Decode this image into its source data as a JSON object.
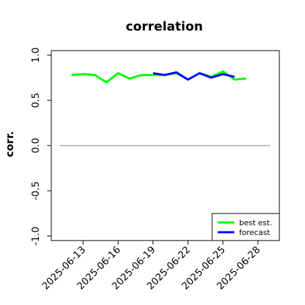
{
  "chart_data": {
    "type": "line",
    "title": "correlation",
    "xlabel": "",
    "ylabel": "corr.",
    "ylim": [
      -1.05,
      1.05
    ],
    "yticks": [
      "-1.0",
      "-0.5",
      "0.0",
      "0.5",
      "1.0"
    ],
    "ytick_values": [
      -1.0,
      -0.5,
      0.0,
      0.5,
      1.0
    ],
    "xticks": [
      "2025-06-13",
      "2025-06-16",
      "2025-06-19",
      "2025-06-22",
      "2025-06-25",
      "2025-06-28"
    ],
    "highlighted_xtick": "2025-06-19",
    "highlight_color": "#228B22",
    "grid": false,
    "legend_position": "lower right",
    "reference_line": {
      "y": 0.0,
      "color": "#808080"
    },
    "series": [
      {
        "name": "best est.",
        "color": "#00ff00",
        "x": [
          "2025-06-12",
          "2025-06-13",
          "2025-06-14",
          "2025-06-15",
          "2025-06-16",
          "2025-06-17",
          "2025-06-18",
          "2025-06-19",
          "2025-06-20",
          "2025-06-21",
          "2025-06-22",
          "2025-06-23",
          "2025-06-24",
          "2025-06-25",
          "2025-06-26",
          "2025-06-27"
        ],
        "values": [
          0.78,
          0.79,
          0.78,
          0.7,
          0.8,
          0.74,
          0.78,
          0.78,
          0.78,
          0.8,
          0.73,
          0.8,
          0.76,
          0.82,
          0.73,
          0.74
        ]
      },
      {
        "name": "forecast",
        "color": "#0000ff",
        "x": [
          "2025-06-19",
          "2025-06-20",
          "2025-06-21",
          "2025-06-22",
          "2025-06-23",
          "2025-06-24",
          "2025-06-25",
          "2025-06-26"
        ],
        "values": [
          0.8,
          0.78,
          0.81,
          0.73,
          0.8,
          0.75,
          0.79,
          0.76
        ]
      }
    ]
  }
}
